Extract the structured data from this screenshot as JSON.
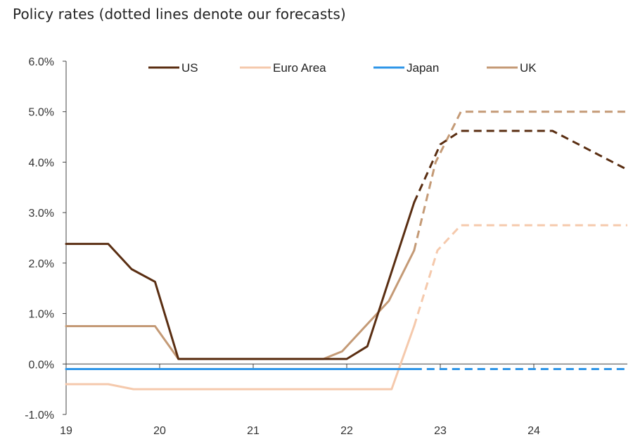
{
  "chart_data": {
    "type": "line",
    "title": "Policy rates (dotted lines denote our forecasts)",
    "xlabel": "",
    "ylabel": "",
    "x_ticks": [
      "19",
      "20",
      "21",
      "22",
      "23",
      "24"
    ],
    "x_range": [
      2019.0,
      2025.0
    ],
    "y_ticks": [
      "6.0%",
      "5.0%",
      "4.0%",
      "3.0%",
      "2.0%",
      "1.0%",
      "0.0%",
      "-1.0%"
    ],
    "ylim": [
      -1.0,
      6.0
    ],
    "grid": false,
    "legend_position": "top",
    "series": [
      {
        "name": "US",
        "color": "#5a2e12",
        "actual": [
          [
            2019.0,
            2.38
          ],
          [
            2019.45,
            2.38
          ],
          [
            2019.7,
            1.88
          ],
          [
            2019.95,
            1.63
          ],
          [
            2020.2,
            0.1
          ],
          [
            2022.0,
            0.1
          ],
          [
            2022.22,
            0.35
          ],
          [
            2022.72,
            3.2
          ]
        ],
        "forecast": [
          [
            2022.72,
            3.2
          ],
          [
            2023.0,
            4.35
          ],
          [
            2023.22,
            4.62
          ],
          [
            2024.2,
            4.62
          ],
          [
            2025.0,
            3.85
          ]
        ]
      },
      {
        "name": "Euro Area",
        "color": "#f5c9ac",
        "actual": [
          [
            2019.0,
            -0.4
          ],
          [
            2019.45,
            -0.4
          ],
          [
            2019.72,
            -0.5
          ],
          [
            2022.48,
            -0.5
          ],
          [
            2022.72,
            0.75
          ]
        ],
        "forecast": [
          [
            2022.72,
            0.75
          ],
          [
            2022.97,
            2.25
          ],
          [
            2023.22,
            2.75
          ],
          [
            2025.0,
            2.75
          ]
        ]
      },
      {
        "name": "Japan",
        "color": "#2f96e8",
        "actual": [
          [
            2019.0,
            -0.1
          ],
          [
            2022.72,
            -0.1
          ]
        ],
        "forecast": [
          [
            2022.72,
            -0.1
          ],
          [
            2025.0,
            -0.1
          ]
        ]
      },
      {
        "name": "UK",
        "color": "#c49a76",
        "actual": [
          [
            2019.0,
            0.75
          ],
          [
            2019.95,
            0.75
          ],
          [
            2020.2,
            0.1
          ],
          [
            2021.75,
            0.1
          ],
          [
            2021.95,
            0.25
          ],
          [
            2022.2,
            0.75
          ],
          [
            2022.45,
            1.25
          ],
          [
            2022.72,
            2.25
          ]
        ],
        "forecast": [
          [
            2022.72,
            2.25
          ],
          [
            2022.95,
            4.0
          ],
          [
            2023.22,
            5.0
          ],
          [
            2025.0,
            5.0
          ]
        ]
      }
    ]
  }
}
